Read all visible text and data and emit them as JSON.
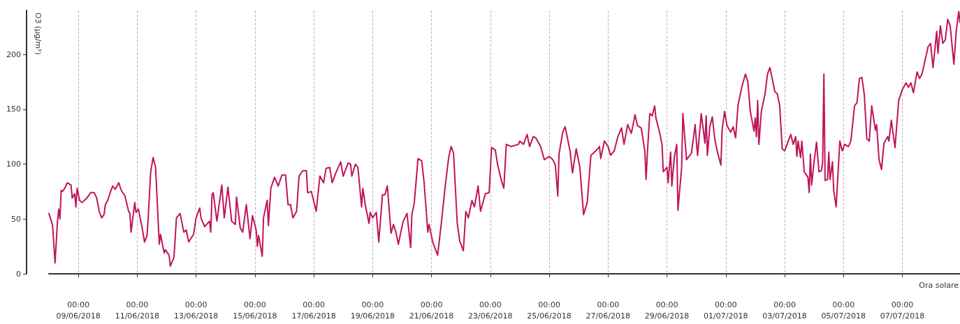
{
  "chart_data": {
    "type": "line",
    "ylabel": "O3 (µg/m³)",
    "xlabel": "Ora solare",
    "xlim": [
      "2018-06-08T00:00",
      "2018-07-08T23:00"
    ],
    "ylim": [
      0,
      240
    ],
    "yticks": [
      0,
      50,
      100,
      150,
      200
    ],
    "xticks": [
      {
        "value": "2018-06-09T00:00",
        "label": "00:00\n09/06/2018"
      },
      {
        "value": "2018-06-11T00:00",
        "label": "00:00\n11/06/2018"
      },
      {
        "value": "2018-06-13T00:00",
        "label": "00:00\n13/06/2018"
      },
      {
        "value": "2018-06-15T00:00",
        "label": "00:00\n15/06/2018"
      },
      {
        "value": "2018-06-17T00:00",
        "label": "00:00\n17/06/2018"
      },
      {
        "value": "2018-06-19T00:00",
        "label": "00:00\n19/06/2018"
      },
      {
        "value": "2018-06-21T00:00",
        "label": "00:00\n21/06/2018"
      },
      {
        "value": "2018-06-23T00:00",
        "label": "00:00\n23/06/2018"
      },
      {
        "value": "2018-06-25T00:00",
        "label": "00:00\n25/06/2018"
      },
      {
        "value": "2018-06-27T00:00",
        "label": "00:00\n27/06/2018"
      },
      {
        "value": "2018-06-29T00:00",
        "label": "00:00\n29/06/2018"
      },
      {
        "value": "2018-07-01T00:00",
        "label": "00:00\n01/07/2018"
      },
      {
        "value": "2018-07-03T00:00",
        "label": "00:00\n03/07/2018"
      },
      {
        "value": "2018-07-05T00:00",
        "label": "00:00\n05/07/2018"
      },
      {
        "value": "2018-07-07T00:00",
        "label": "00:00\n07/07/2018"
      }
    ],
    "grid": "x",
    "series": [
      {
        "color": "#c0145a",
        "x": [
          "2018-06-08T00:00",
          "2018-06-08T02:00",
          "2018-06-08T03:00",
          "2018-06-08T05:00",
          "2018-06-08T07:00",
          "2018-06-08T08:00",
          "2018-06-08T09:00",
          "2018-06-08T10:00",
          "2018-06-08T11:00",
          "2018-06-08T13:00",
          "2018-06-08T15:00",
          "2018-06-08T18:00",
          "2018-06-08T19:00",
          "2018-06-08T21:00",
          "2018-06-08T22:00",
          "2018-06-08T23:00",
          "2018-06-09T01:00",
          "2018-06-09T03:00",
          "2018-06-09T07:00",
          "2018-06-09T10:00",
          "2018-06-09T13:00",
          "2018-06-09T15:00",
          "2018-06-09T17:00",
          "2018-06-09T19:00",
          "2018-06-09T21:00",
          "2018-06-09T22:00",
          "2018-06-10T00:00",
          "2018-06-10T02:00",
          "2018-06-10T04:00",
          "2018-06-10T06:00",
          "2018-06-10T09:00",
          "2018-06-10T11:00",
          "2018-06-10T14:00",
          "2018-06-10T17:00",
          "2018-06-10T18:00",
          "2018-06-10T19:00",
          "2018-06-10T22:00",
          "2018-06-10T23:00",
          "2018-06-11T01:00",
          "2018-06-11T04:00",
          "2018-06-11T06:00",
          "2018-06-11T08:00",
          "2018-06-11T09:00",
          "2018-06-11T11:00",
          "2018-06-11T13:00",
          "2018-06-11T15:00",
          "2018-06-11T18:00",
          "2018-06-11T19:00",
          "2018-06-11T22:00",
          "2018-06-11T23:00",
          "2018-06-12T02:00",
          "2018-06-12T03:00",
          "2018-06-12T06:00",
          "2018-06-12T08:00",
          "2018-06-12T11:00",
          "2018-06-12T14:00",
          "2018-06-12T16:00",
          "2018-06-12T18:00",
          "2018-06-12T22:00",
          "2018-06-13T00:00",
          "2018-06-13T03:00",
          "2018-06-13T04:00",
          "2018-06-13T07:00",
          "2018-06-13T11:00",
          "2018-06-13T12:00",
          "2018-06-13T13:00",
          "2018-06-13T14:00",
          "2018-06-13T17:00",
          "2018-06-13T21:00",
          "2018-06-13T23:00",
          "2018-06-14T02:00",
          "2018-06-14T05:00",
          "2018-06-14T08:00",
          "2018-06-14T09:00",
          "2018-06-14T12:00",
          "2018-06-14T14:00",
          "2018-06-14T17:00",
          "2018-06-14T20:00",
          "2018-06-14T22:00",
          "2018-06-15T01:00",
          "2018-06-15T02:00",
          "2018-06-15T03:00",
          "2018-06-15T06:00",
          "2018-06-15T07:00",
          "2018-06-15T10:00",
          "2018-06-15T11:00",
          "2018-06-15T13:00",
          "2018-06-15T16:00",
          "2018-06-15T19:00",
          "2018-06-15T22:00",
          "2018-06-16T01:00",
          "2018-06-16T03:00",
          "2018-06-16T05:00",
          "2018-06-16T07:00",
          "2018-06-16T10:00",
          "2018-06-16T12:00",
          "2018-06-16T15:00",
          "2018-06-16T18:00",
          "2018-06-16T19:00",
          "2018-06-16T22:00",
          "2018-06-17T02:00",
          "2018-06-17T05:00",
          "2018-06-17T08:00",
          "2018-06-17T10:00",
          "2018-06-17T13:00",
          "2018-06-17T15:00",
          "2018-06-17T18:00",
          "2018-06-17T22:00",
          "2018-06-18T00:00",
          "2018-06-18T04:00",
          "2018-06-18T06:00",
          "2018-06-18T07:00",
          "2018-06-18T10:00",
          "2018-06-18T12:00",
          "2018-06-18T15:00",
          "2018-06-18T16:00",
          "2018-06-18T18:00",
          "2018-06-18T21:00",
          "2018-06-18T22:00",
          "2018-06-19T00:00",
          "2018-06-19T03:00",
          "2018-06-19T05:00",
          "2018-06-19T08:00",
          "2018-06-19T10:00",
          "2018-06-19T12:00",
          "2018-06-19T15:00",
          "2018-06-19T17:00",
          "2018-06-19T19:00",
          "2018-06-19T21:00",
          "2018-06-19T23:00",
          "2018-06-20T01:00",
          "2018-06-20T04:00",
          "2018-06-20T07:00",
          "2018-06-20T08:00",
          "2018-06-20T10:00",
          "2018-06-20T13:00",
          "2018-06-20T16:00",
          "2018-06-20T18:00",
          "2018-06-20T21:00",
          "2018-06-20T22:00",
          "2018-06-21T01:00",
          "2018-06-21T05:00",
          "2018-06-21T08:00",
          "2018-06-21T11:00",
          "2018-06-21T14:00",
          "2018-06-21T16:00",
          "2018-06-21T18:00",
          "2018-06-21T21:00",
          "2018-06-21T23:00",
          "2018-06-22T02:00",
          "2018-06-22T04:00",
          "2018-06-22T06:00",
          "2018-06-22T09:00",
          "2018-06-22T11:00",
          "2018-06-22T14:00",
          "2018-06-22T16:00",
          "2018-06-22T20:00",
          "2018-06-22T23:00",
          "2018-06-23T01:00",
          "2018-06-23T04:00",
          "2018-06-23T06:00",
          "2018-06-23T09:00",
          "2018-06-23T11:00",
          "2018-06-23T13:00",
          "2018-06-23T17:00",
          "2018-06-23T23:00",
          "2018-06-24T00:00",
          "2018-06-24T03:00",
          "2018-06-24T06:00",
          "2018-06-24T08:00",
          "2018-06-24T11:00",
          "2018-06-24T13:00",
          "2018-06-24T17:00",
          "2018-06-24T20:00",
          "2018-06-25T00:00",
          "2018-06-25T03:00",
          "2018-06-25T05:00",
          "2018-06-25T07:00",
          "2018-06-25T08:00",
          "2018-06-25T11:00",
          "2018-06-25T13:00",
          "2018-06-25T17:00",
          "2018-06-25T19:00",
          "2018-06-25T22:00",
          "2018-06-26T01:00",
          "2018-06-26T04:00",
          "2018-06-26T07:00",
          "2018-06-26T10:00",
          "2018-06-26T14:00",
          "2018-06-26T17:00",
          "2018-06-26T18:00",
          "2018-06-26T21:00",
          "2018-06-27T00:00",
          "2018-06-27T02:00",
          "2018-06-27T05:00",
          "2018-06-27T08:00",
          "2018-06-27T11:00",
          "2018-06-27T13:00",
          "2018-06-27T16:00",
          "2018-06-27T19:00",
          "2018-06-27T22:00",
          "2018-06-28T00:00",
          "2018-06-28T03:00",
          "2018-06-28T06:00",
          "2018-06-28T07:00",
          "2018-06-28T08:00",
          "2018-06-28T10:00",
          "2018-06-28T12:00",
          "2018-06-28T14:00",
          "2018-06-28T15:00",
          "2018-06-28T18:00",
          "2018-06-28T20:00",
          "2018-06-28T21:00",
          "2018-06-29T00:00",
          "2018-06-29T01:00",
          "2018-06-29T03:00",
          "2018-06-29T04:00",
          "2018-06-29T06:00",
          "2018-06-29T08:00",
          "2018-06-29T09:00",
          "2018-06-29T12:00",
          "2018-06-29T13:00",
          "2018-06-29T16:00",
          "2018-06-29T20:00",
          "2018-06-29T22:00",
          "2018-06-29T23:00",
          "2018-06-30T00:00",
          "2018-06-30T01:00",
          "2018-06-30T04:00",
          "2018-06-30T07:00",
          "2018-06-30T08:00",
          "2018-06-30T09:00",
          "2018-06-30T11:00",
          "2018-06-30T13:00",
          "2018-06-30T15:00",
          "2018-06-30T17:00",
          "2018-06-30T20:00",
          "2018-06-30T21:00",
          "2018-06-30T23:00",
          "2018-07-01T01:00",
          "2018-07-01T04:00",
          "2018-07-01T06:00",
          "2018-07-01T08:00",
          "2018-07-01T10:00",
          "2018-07-01T13:00",
          "2018-07-01T16:00",
          "2018-07-01T18:00",
          "2018-07-01T20:00",
          "2018-07-01T23:00",
          "2018-07-02T00:00",
          "2018-07-02T01:00",
          "2018-07-02T02:00",
          "2018-07-02T03:00",
          "2018-07-02T05:00",
          "2018-07-02T08:00",
          "2018-07-02T10:00",
          "2018-07-02T12:00",
          "2018-07-02T16:00",
          "2018-07-02T18:00",
          "2018-07-02T20:00",
          "2018-07-02T22:00",
          "2018-07-03T00:00",
          "2018-07-03T03:00",
          "2018-07-03T05:00",
          "2018-07-03T07:00",
          "2018-07-03T09:00",
          "2018-07-03T10:00",
          "2018-07-03T11:00",
          "2018-07-03T13:00",
          "2018-07-03T14:00",
          "2018-07-03T16:00",
          "2018-07-03T19:00",
          "2018-07-03T20:00",
          "2018-07-03T21:00",
          "2018-07-03T22:00",
          "2018-07-04T00:00",
          "2018-07-04T02:00",
          "2018-07-04T04:00",
          "2018-07-04T06:00",
          "2018-07-04T07:00",
          "2018-07-04T08:00",
          "2018-07-04T09:00",
          "2018-07-04T11:00",
          "2018-07-04T12:00",
          "2018-07-04T13:00",
          "2018-07-04T15:00",
          "2018-07-04T16:00",
          "2018-07-04T18:00",
          "2018-07-04T21:00",
          "2018-07-04T23:00",
          "2018-07-05T01:00",
          "2018-07-05T04:00",
          "2018-07-05T06:00",
          "2018-07-05T09:00",
          "2018-07-05T11:00",
          "2018-07-05T13:00",
          "2018-07-05T15:00",
          "2018-07-05T17:00",
          "2018-07-05T19:00",
          "2018-07-05T21:00",
          "2018-07-05T23:00",
          "2018-07-06T02:00",
          "2018-07-06T03:00",
          "2018-07-06T05:00",
          "2018-07-06T07:00",
          "2018-07-06T09:00",
          "2018-07-06T12:00",
          "2018-07-06T13:00",
          "2018-07-06T15:00",
          "2018-07-06T18:00",
          "2018-07-06T21:00",
          "2018-07-07T00:00",
          "2018-07-07T03:00",
          "2018-07-07T05:00",
          "2018-07-07T07:00",
          "2018-07-07T09:00",
          "2018-07-07T12:00",
          "2018-07-07T14:00",
          "2018-07-07T16:00",
          "2018-07-07T21:00",
          "2018-07-07T23:00",
          "2018-07-08T01:00",
          "2018-07-08T04:00",
          "2018-07-08T05:00",
          "2018-07-08T07:00",
          "2018-07-08T09:00",
          "2018-07-08T11:00",
          "2018-07-08T13:00",
          "2018-07-08T15:00",
          "2018-07-08T18:00",
          "2018-07-08T20:00",
          "2018-07-08T22:00",
          "2018-07-08T23:00"
        ],
        "values": [
          55,
          48,
          44,
          10,
          48,
          59,
          50,
          76,
          75,
          78,
          83,
          81,
          69,
          73,
          61,
          78,
          67,
          65,
          69,
          74,
          74,
          69,
          57,
          51,
          54,
          63,
          67,
          74,
          80,
          77,
          83,
          76,
          71,
          57,
          55,
          38,
          65,
          56,
          59,
          42,
          29,
          35,
          51,
          93,
          106,
          97,
          27,
          36,
          19,
          22,
          17,
          7,
          15,
          51,
          55,
          38,
          40,
          29,
          36,
          51,
          60,
          51,
          43,
          48,
          38,
          72,
          74,
          48,
          81,
          51,
          79,
          48,
          45,
          70,
          42,
          38,
          63,
          32,
          53,
          40,
          25,
          35,
          16,
          51,
          67,
          44,
          78,
          88,
          80,
          90,
          90,
          63,
          63,
          51,
          57,
          89,
          94,
          94,
          74,
          75,
          57,
          89,
          83,
          96,
          97,
          83,
          92,
          102,
          89,
          101,
          100,
          89,
          100,
          97,
          61,
          78,
          63,
          46,
          56,
          51,
          56,
          29,
          72,
          72,
          80,
          37,
          45,
          38,
          27,
          38,
          48,
          55,
          24,
          54,
          65,
          105,
          103,
          83,
          38,
          45,
          29,
          17,
          46,
          78,
          106,
          116,
          110,
          46,
          30,
          21,
          57,
          51,
          67,
          61,
          80,
          57,
          73,
          74,
          115,
          113,
          99,
          85,
          78,
          118,
          116,
          118,
          121,
          118,
          127,
          116,
          125,
          124,
          116,
          104,
          107,
          104,
          99,
          71,
          109,
          129,
          134,
          112,
          92,
          114,
          97,
          54,
          65,
          108,
          112,
          116,
          105,
          121,
          116,
          108,
          112,
          125,
          133,
          118,
          136,
          128,
          145,
          135,
          133,
          112,
          86,
          109,
          146,
          144,
          153,
          142,
          129,
          118,
          93,
          97,
          83,
          111,
          80,
          106,
          118,
          58,
          97,
          146,
          104,
          110,
          127,
          136,
          121,
          108,
          146,
          119,
          144,
          108,
          134,
          143,
          123,
          112,
          99,
          131,
          148,
          135,
          129,
          134,
          124,
          154,
          170,
          182,
          175,
          148,
          130,
          142,
          125,
          158,
          118,
          148,
          164,
          182,
          188,
          166,
          164,
          153,
          114,
          112,
          121,
          127,
          118,
          125,
          107,
          121,
          106,
          121,
          93,
          88,
          74,
          109,
          81,
          102,
          120,
          93,
          94,
          102,
          182,
          85,
          86,
          111,
          86,
          102,
          76,
          61,
          121,
          112,
          118,
          116,
          121,
          153,
          156,
          178,
          179,
          163,
          123,
          121,
          153,
          131,
          136,
          104,
          95,
          119,
          125,
          121,
          140,
          115,
          158,
          168,
          174,
          170,
          174,
          165,
          184,
          178,
          182,
          207,
          210,
          188,
          221,
          201,
          226,
          210,
          213,
          232,
          226,
          191,
          222,
          239,
          229
        ]
      }
    ]
  }
}
